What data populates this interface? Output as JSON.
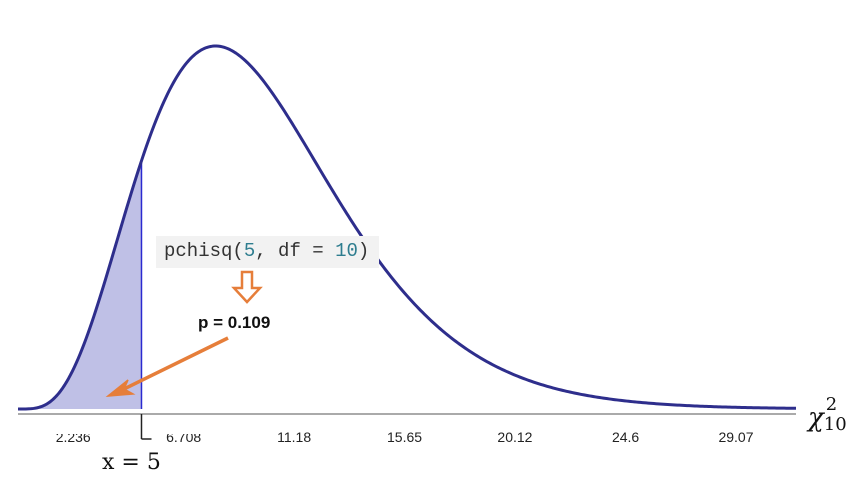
{
  "chart_data": {
    "type": "area",
    "distribution": "chi-squared",
    "df": 10,
    "x_range": [
      0,
      31.5
    ],
    "shaded_upper": 5,
    "tick_labels": [
      "2.236",
      "6.708",
      "11.18",
      "15.65",
      "20.12",
      "24.6",
      "29.07"
    ],
    "tick_values": [
      2.236,
      6.708,
      11.18,
      15.65,
      20.12,
      24.6,
      29.07
    ],
    "curve_color": "#2e2e8c",
    "fill_color": "#bfc0e6",
    "marker_line_color": "#2a2ad0",
    "annotation_color": "#e67e3a"
  },
  "annotations": {
    "code_fn": "pchisq(",
    "code_q": "5",
    "code_sep": ", df = ",
    "code_df": "10",
    "code_close": ")",
    "p_value": "p = 0.109",
    "x_marker": "x = 5",
    "axis_symbol": "χ",
    "axis_sup": "2",
    "axis_sub": "10"
  }
}
